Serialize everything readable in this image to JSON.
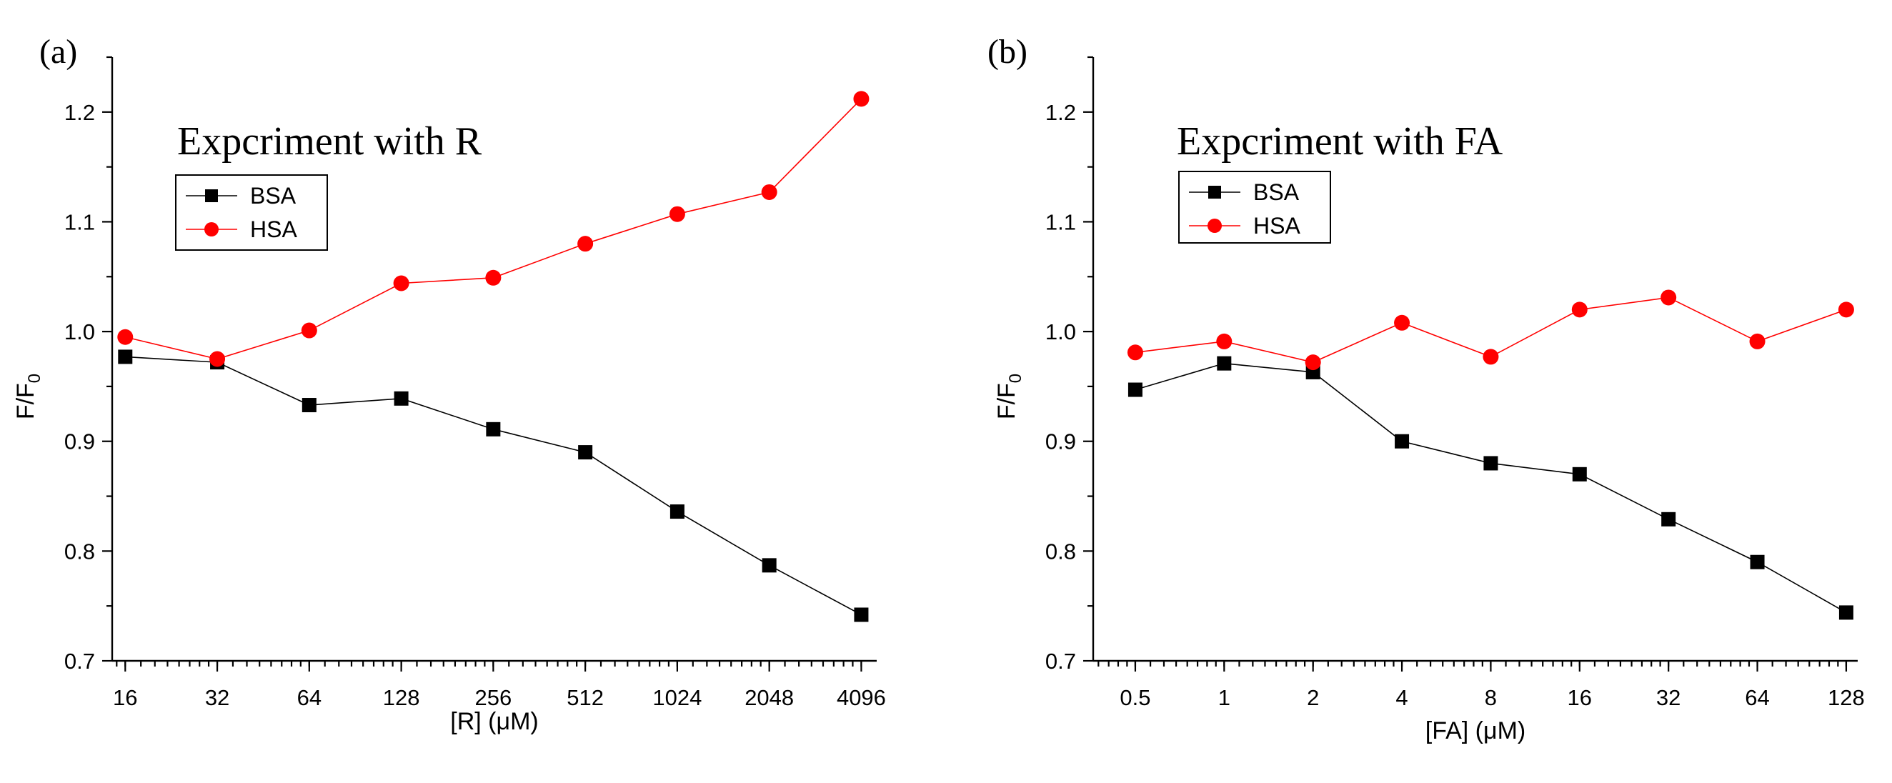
{
  "chart_data": [
    {
      "type": "line",
      "panel_label": "(a)",
      "title": "Expcriment with R",
      "xlabel": "[R] (μM)",
      "ylabel": "F/F0",
      "ylabel_main": "F/F",
      "ylabel_sub": "0",
      "x_scale": "log2",
      "xlim": [
        14.5,
        4600
      ],
      "ylim": [
        0.7,
        1.25
      ],
      "x_ticks": [
        16,
        32,
        64,
        128,
        256,
        512,
        1024,
        2048,
        4096
      ],
      "x_tick_labels": [
        "16",
        "32",
        "64",
        "128",
        "256",
        "512",
        "1024",
        "2048",
        "4096"
      ],
      "y_ticks": [
        0.7,
        0.8,
        0.9,
        1.0,
        1.1,
        1.2
      ],
      "y_tick_labels": [
        "0.7",
        "0.8",
        "0.9",
        "1.0",
        "1.1",
        "1.2"
      ],
      "legend_position": "top-left",
      "series": [
        {
          "name": "BSA",
          "color": "#000000",
          "line_color": "#000000",
          "marker": "square",
          "x": [
            16,
            32,
            64,
            128,
            256,
            512,
            1024,
            2048,
            4096
          ],
          "values": [
            0.977,
            0.972,
            0.933,
            0.939,
            0.911,
            0.89,
            0.836,
            0.787,
            0.742
          ]
        },
        {
          "name": "HSA",
          "color": "#ff0000",
          "line_color": "#ff0000",
          "marker": "circle",
          "x": [
            16,
            32,
            64,
            128,
            256,
            512,
            1024,
            2048,
            4096
          ],
          "values": [
            0.995,
            0.975,
            1.001,
            1.044,
            1.049,
            1.08,
            1.107,
            1.127,
            1.212
          ]
        }
      ]
    },
    {
      "type": "line",
      "panel_label": "(b)",
      "title": "Expcriment with FA",
      "xlabel": "[FA] (μM)",
      "ylabel": "F/F0",
      "ylabel_main": "F/F",
      "ylabel_sub": "0",
      "x_scale": "log2",
      "xlim": [
        0.36,
        140
      ],
      "ylim": [
        0.7,
        1.25
      ],
      "x_ticks": [
        0.5,
        1,
        2,
        4,
        8,
        16,
        32,
        64,
        128
      ],
      "x_tick_labels": [
        "0.5",
        "1",
        "2",
        "4",
        "8",
        "16",
        "32",
        "64",
        "128"
      ],
      "y_ticks": [
        0.7,
        0.8,
        0.9,
        1.0,
        1.1,
        1.2
      ],
      "y_tick_labels": [
        "0.7",
        "0.8",
        "0.9",
        "1.0",
        "1.1",
        "1.2"
      ],
      "legend_position": "top-left",
      "series": [
        {
          "name": "BSA",
          "color": "#000000",
          "line_color": "#000000",
          "marker": "square",
          "x": [
            0.5,
            1,
            2,
            4,
            8,
            16,
            32,
            64,
            128
          ],
          "values": [
            0.947,
            0.971,
            0.963,
            0.9,
            0.88,
            0.87,
            0.829,
            0.79,
            0.744
          ]
        },
        {
          "name": "HSA",
          "color": "#ff0000",
          "line_color": "#ff0000",
          "marker": "circle",
          "x": [
            0.5,
            1,
            2,
            4,
            8,
            16,
            32,
            64,
            128
          ],
          "values": [
            0.981,
            0.991,
            0.972,
            1.008,
            0.977,
            1.02,
            1.031,
            0.991,
            1.02
          ]
        }
      ]
    }
  ]
}
